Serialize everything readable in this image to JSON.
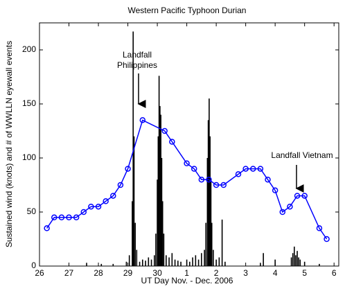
{
  "chart_data": {
    "type": "combo",
    "title": "Western Pacific Typhoon Durian",
    "x_label": "UT Day Nov. - Dec. 2006",
    "y_label": "Sustained wind (knots) and # of WWLLN eyewall events",
    "xlim": [
      26,
      36.16
    ],
    "ylim": [
      0,
      225
    ],
    "xticks": [
      26,
      27,
      28,
      29,
      30,
      {
        "value": 31,
        "label": "1"
      },
      {
        "value": 32,
        "label": "2"
      },
      {
        "value": 33,
        "label": "3"
      },
      {
        "value": 34,
        "label": "4"
      },
      {
        "value": 35,
        "label": "5"
      },
      {
        "value": 36,
        "label": "6"
      }
    ],
    "yticks": [
      0,
      50,
      100,
      150,
      200
    ],
    "annotations": [
      {
        "lines": [
          "Landfall",
          "Philippines"
        ]
      },
      {
        "lines": [
          "Landfall Vietnam"
        ]
      }
    ],
    "series": [
      {
        "type": "bar",
        "color": "#000000",
        "x": [
          27.6,
          28.1,
          28.5,
          28.95,
          29.05,
          29.15,
          29.18,
          29.21,
          29.25,
          29.3,
          29.4,
          29.5,
          29.6,
          29.7,
          29.8,
          29.9,
          29.95,
          30.0,
          30.03,
          30.06,
          30.09,
          30.12,
          30.15,
          30.18,
          30.22,
          30.3,
          30.4,
          30.5,
          30.6,
          30.7,
          30.8,
          31.0,
          31.1,
          31.2,
          31.3,
          31.4,
          31.5,
          31.6,
          31.65,
          31.7,
          31.73,
          31.76,
          31.79,
          31.82,
          31.85,
          31.9,
          32.0,
          32.1,
          32.2,
          32.3,
          33.5,
          33.6,
          34.0,
          34.55,
          34.6,
          34.65,
          34.7,
          34.75,
          34.8,
          34.85,
          35.0,
          35.5
        ],
        "values": [
          3,
          2,
          2,
          4,
          10,
          60,
          217,
          120,
          40,
          15,
          4,
          6,
          5,
          8,
          6,
          10,
          30,
          80,
          120,
          176,
          148,
          140,
          100,
          60,
          30,
          10,
          8,
          12,
          6,
          5,
          4,
          6,
          4,
          8,
          10,
          6,
          12,
          15,
          40,
          100,
          135,
          155,
          120,
          80,
          40,
          15,
          6,
          8,
          43,
          4,
          3,
          12,
          6,
          8,
          12,
          18,
          10,
          14,
          8,
          6,
          4,
          2
        ]
      },
      {
        "type": "line",
        "color": "#0000ff",
        "x": [
          26.25,
          26.5,
          26.75,
          27,
          27.25,
          27.5,
          27.75,
          28,
          28.25,
          28.5,
          28.75,
          29,
          29.5,
          30.25,
          30.5,
          31,
          31.25,
          31.5,
          31.75,
          32,
          32.25,
          32.75,
          33,
          33.25,
          33.5,
          33.75,
          34,
          34.25,
          34.5,
          34.75,
          35,
          35.5,
          35.75
        ],
        "values": [
          35,
          45,
          45,
          45,
          45,
          50,
          55,
          55,
          60,
          65,
          75,
          90,
          135,
          125,
          115,
          95,
          90,
          80,
          80,
          75,
          75,
          85,
          90,
          90,
          90,
          80,
          70,
          50,
          55,
          65,
          65,
          35,
          25
        ]
      }
    ]
  }
}
